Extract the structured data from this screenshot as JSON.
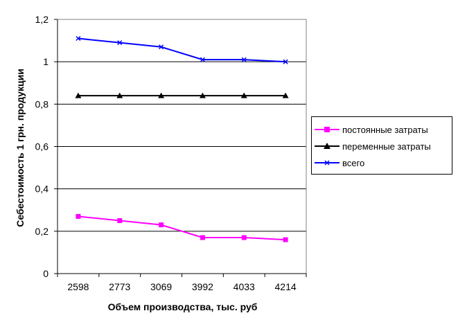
{
  "chart_data": {
    "type": "line",
    "xlabel": "Объем производства, тыс. руб",
    "ylabel": "Себестоимость 1 грн. продукции",
    "categories": [
      "2598",
      "2773",
      "3069",
      "3992",
      "4033",
      "4214"
    ],
    "ylim": [
      0,
      1.2
    ],
    "yticks": [
      "0",
      "0,2",
      "0,4",
      "0,6",
      "0,8",
      "1",
      "1,2"
    ],
    "grid": "horizontal",
    "legend_position": "right",
    "series": [
      {
        "name": "постоянные затраты",
        "color": "#ff00ff",
        "marker": "square",
        "values": [
          0.27,
          0.25,
          0.23,
          0.17,
          0.17,
          0.16
        ]
      },
      {
        "name": "переменные затраты",
        "color": "#000000",
        "marker": "triangle",
        "values": [
          0.84,
          0.84,
          0.84,
          0.84,
          0.84,
          0.84
        ]
      },
      {
        "name": "всего",
        "color": "#0000ff",
        "marker": "x",
        "values": [
          1.11,
          1.09,
          1.07,
          1.01,
          1.01,
          1.0
        ]
      }
    ]
  }
}
